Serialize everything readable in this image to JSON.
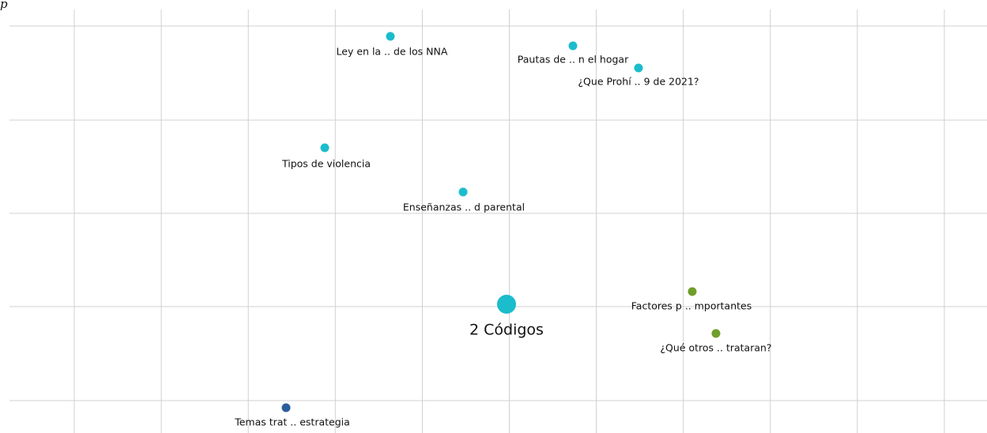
{
  "corner_text": "p",
  "nodes": [
    {
      "label": "Ley en la  .. de los NNA",
      "color": "#1bbccc"
    },
    {
      "label": "Pautas de  .. n el hogar",
      "color": "#1bbccc"
    },
    {
      "label": "¿Que Prohí .. 9 de 2021?",
      "color": "#1bbccc"
    },
    {
      "label": "Tipos de violencia",
      "color": "#1bbccc"
    },
    {
      "label": "Enseñanzas .. d parental",
      "color": "#1bbccc"
    },
    {
      "label": "2 Códigos",
      "color": "#1bbccc"
    },
    {
      "label": "Factores p .. mportantes",
      "color": "#6f9e2b"
    },
    {
      "label": "¿Qué otros ..  trataran?",
      "color": "#6f9e2b"
    },
    {
      "label": "Temas trat .. estrategia",
      "color": "#2b5d9c"
    }
  ]
}
